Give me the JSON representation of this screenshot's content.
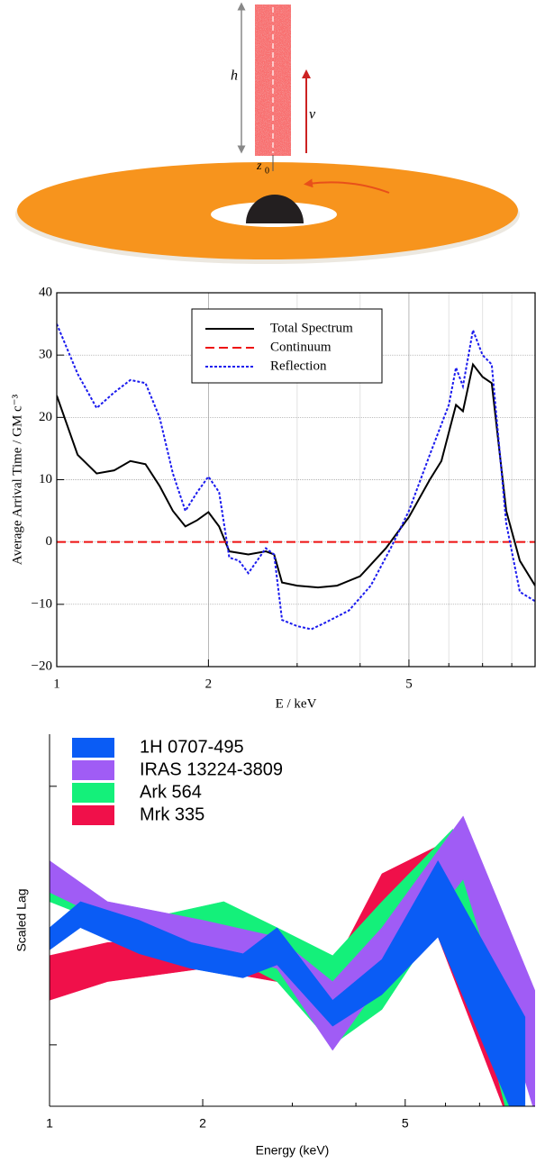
{
  "diagram": {
    "height_label": "h",
    "velocity_label": "v",
    "source_label": "z",
    "source_subscript": "0"
  },
  "chart_data": [
    {
      "type": "line",
      "x_label": "E / keV",
      "y_label": "Average Arrival Time / GM c⁻³",
      "xscale": "log",
      "xlim": [
        1,
        8.9
      ],
      "xticks": [
        1,
        2,
        5
      ],
      "xminorticks": [
        3,
        4,
        6,
        7,
        8
      ],
      "ylim": [
        -20,
        40
      ],
      "yticks": [
        {
          "value": -20,
          "label": "−20"
        },
        {
          "value": -10,
          "label": "−10"
        },
        0,
        10,
        20,
        30,
        40
      ],
      "grid": true,
      "legend": "upper center",
      "series": [
        {
          "name": "Total Spectrum",
          "color": "#000000",
          "dash": "solid",
          "x": [
            1,
            1.1,
            1.2,
            1.3,
            1.4,
            1.5,
            1.6,
            1.7,
            1.8,
            1.9,
            2.0,
            2.1,
            2.2,
            2.4,
            2.6,
            2.7,
            2.8,
            3.0,
            3.3,
            3.6,
            4.0,
            4.5,
            5.0,
            5.5,
            5.8,
            6.2,
            6.4,
            6.7,
            7.0,
            7.3,
            7.8,
            8.3,
            8.9
          ],
          "values": [
            23.5,
            14,
            11,
            11.5,
            13,
            12.5,
            9,
            5,
            2.5,
            3.5,
            4.8,
            2.5,
            -1.5,
            -2,
            -1.5,
            -2,
            -6.5,
            -7,
            -7.3,
            -7,
            -5.5,
            -1,
            4,
            10,
            13,
            22,
            21,
            28.5,
            26.5,
            25.5,
            5,
            -3,
            -7
          ]
        },
        {
          "name": "Continuum",
          "color": "#ee1111",
          "dash": "dashed",
          "x": [
            1,
            8.9
          ],
          "values": [
            0,
            0
          ]
        },
        {
          "name": "Reflection",
          "color": "#1a1aee",
          "dash": "dotted",
          "x": [
            1,
            1.1,
            1.2,
            1.3,
            1.4,
            1.5,
            1.6,
            1.7,
            1.8,
            1.9,
            2.0,
            2.1,
            2.2,
            2.3,
            2.4,
            2.6,
            2.7,
            2.8,
            3.0,
            3.2,
            3.4,
            3.8,
            4.2,
            4.6,
            5.0,
            5.5,
            6.0,
            6.2,
            6.4,
            6.7,
            7.0,
            7.3,
            7.8,
            8.3,
            8.9
          ],
          "values": [
            35,
            27,
            21.5,
            24,
            26,
            25.5,
            20,
            11,
            5,
            8,
            10.5,
            8,
            -2.5,
            -3,
            -5,
            -1,
            -2,
            -12.5,
            -13.5,
            -14,
            -13,
            -11,
            -7,
            -1,
            5,
            14,
            22,
            28,
            25,
            34,
            30,
            28.5,
            3,
            -8,
            -9.5
          ]
        }
      ]
    },
    {
      "type": "band",
      "x_label": "Energy (keV)",
      "y_label": "Scaled Lag",
      "xscale": "log",
      "xlim": [
        1,
        9
      ],
      "xticks": [
        1,
        2,
        5
      ],
      "xminorticks": [
        3,
        4,
        6,
        7,
        8
      ],
      "ylim": [
        0,
        10
      ],
      "yticks": [
        1.65,
        3.95,
        6.3,
        8.6
      ],
      "legend": "upper left",
      "series": [
        {
          "name": "1H 0707-495",
          "color": "#0a5cf5",
          "x": [
            1.0,
            1.15,
            1.5,
            1.9,
            2.4,
            2.8,
            3.6,
            4.5,
            5.8,
            8.6
          ],
          "high": [
            4.8,
            5.5,
            5.0,
            4.4,
            4.1,
            4.8,
            2.85,
            3.95,
            6.6,
            2.4
          ],
          "low": [
            4.2,
            4.8,
            4.1,
            3.7,
            3.45,
            3.8,
            2.15,
            3.0,
            4.55,
            -1
          ]
        },
        {
          "name": "IRAS 13224-3809",
          "color": "#a05cf5",
          "x": [
            1.0,
            1.3,
            2.0,
            2.8,
            3.6,
            4.5,
            6.5,
            9.0
          ],
          "high": [
            6.6,
            5.5,
            5.0,
            4.55,
            3.35,
            4.8,
            7.8,
            3.1
          ],
          "low": [
            5.75,
            5.0,
            4.3,
            3.7,
            1.5,
            3.35,
            6.1,
            -0.2
          ]
        },
        {
          "name": "Ark 564",
          "color": "#14f07a",
          "x": [
            1.0,
            1.5,
            2.2,
            2.8,
            3.6,
            4.5,
            6.2,
            8.2
          ],
          "high": [
            6.1,
            5.0,
            5.5,
            4.8,
            4.05,
            5.5,
            7.45,
            1.0
          ],
          "low": [
            5.5,
            4.55,
            4.1,
            3.35,
            1.65,
            2.6,
            5.5,
            -1
          ]
        },
        {
          "name": "Mrk 335",
          "color": "#f0104a",
          "x": [
            1.0,
            1.3,
            2.0,
            2.8,
            3.6,
            4.5,
            5.8,
            8.3
          ],
          "high": [
            4.05,
            4.4,
            4.55,
            4.05,
            3.7,
            6.25,
            7.0,
            0.7
          ],
          "low": [
            2.85,
            3.35,
            3.7,
            3.35,
            2.6,
            4.55,
            4.55,
            -1
          ]
        }
      ]
    }
  ]
}
